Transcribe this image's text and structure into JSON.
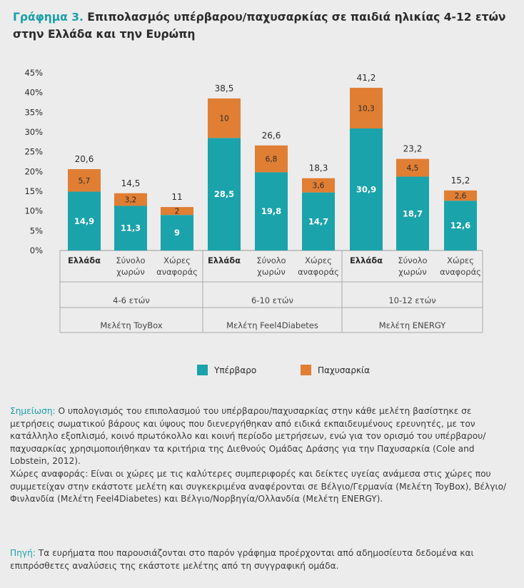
{
  "title": {
    "lead": "Γράφημα 3.",
    "rest": " Επιπολασμός υπέρβαρου/παχυσαρκίας σε παιδιά ηλικίας 4-12 ετών στην Ελλάδα και την Ευρώπη"
  },
  "colors": {
    "overweight": "#1aa3ab",
    "obesity": "#e07e34"
  },
  "chart_data": {
    "type": "bar",
    "stacked": true,
    "y_ticks": [
      "0%",
      "5%",
      "10%",
      "15%",
      "20%",
      "25%",
      "30%",
      "35%",
      "40%",
      "45%"
    ],
    "ylim": [
      0,
      45
    ],
    "groups": [
      {
        "study": "Μελέτη ToyBox",
        "age": "4-6 ετών",
        "bars": [
          {
            "label": [
              "Ελλάδα"
            ],
            "bold": true,
            "overweight": 14.9,
            "obesity": 5.7,
            "total": "20,6",
            "ow_label": "14,9",
            "ob_label": "5,7"
          },
          {
            "label": [
              "Σύνολο",
              "χωρών"
            ],
            "bold": false,
            "overweight": 11.3,
            "obesity": 3.2,
            "total": "14,5",
            "ow_label": "11,3",
            "ob_label": "3,2"
          },
          {
            "label": [
              "Χώρες",
              "αναφοράς"
            ],
            "bold": false,
            "overweight": 9,
            "obesity": 2,
            "total": "11",
            "ow_label": "9",
            "ob_label": "2"
          }
        ]
      },
      {
        "study": "Μελέτη Feel4Diabetes",
        "age": "6-10 ετών",
        "bars": [
          {
            "label": [
              "Ελλάδα"
            ],
            "bold": true,
            "overweight": 28.5,
            "obesity": 10,
            "total": "38,5",
            "ow_label": "28,5",
            "ob_label": "10"
          },
          {
            "label": [
              "Σύνολο",
              "χωρών"
            ],
            "bold": false,
            "overweight": 19.8,
            "obesity": 6.8,
            "total": "26,6",
            "ow_label": "19,8",
            "ob_label": "6,8"
          },
          {
            "label": [
              "Χώρες",
              "αναφοράς"
            ],
            "bold": false,
            "overweight": 14.7,
            "obesity": 3.6,
            "total": "18,3",
            "ow_label": "14,7",
            "ob_label": "3,6"
          }
        ]
      },
      {
        "study": "Μελέτη ENERGY",
        "age": "10-12 ετών",
        "bars": [
          {
            "label": [
              "Ελλάδα"
            ],
            "bold": true,
            "overweight": 30.9,
            "obesity": 10.3,
            "total": "41,2",
            "ow_label": "30,9",
            "ob_label": "10,3"
          },
          {
            "label": [
              "Σύνολο",
              "χωρών"
            ],
            "bold": false,
            "overweight": 18.7,
            "obesity": 4.5,
            "total": "23,2",
            "ow_label": "18,7",
            "ob_label": "4,5"
          },
          {
            "label": [
              "Χώρες",
              "αναφοράς"
            ],
            "bold": false,
            "overweight": 12.6,
            "obesity": 2.6,
            "total": "15,2",
            "ow_label": "12,6",
            "ob_label": "2,6"
          }
        ]
      }
    ],
    "legend": [
      "Υπέρβαρο",
      "Παχυσαρκία"
    ],
    "legend_position": "bottom"
  },
  "notes": {
    "note_label": "Σημείωση:",
    "note_text": " Ο υπολογισμός του επιπολασμού του υπέρβαρου/παχυσαρκίας στην κάθε μελέτη βασίστηκε σε μετρήσεις σωματικού βάρους και ύψους που διενεργήθηκαν από ειδικά εκπαιδευμένους ερευνητές, με τον κατάλληλο εξοπλισμό, κοινό πρωτόκολλο και κοινή περίοδο μετρήσεων, ενώ για τον ορισμό του υπέρβαρου/παχυσαρκίας χρησιμοποιήθηκαν τα κριτήρια της Διεθνούς Ομάδας Δράσης για την Παχυσαρκία (Cole and Lobstein, 2012).",
    "ref_text": "Χώρες αναφοράς: Είναι οι χώρες με τις καλύτερες συμπεριφορές και δείκτες υγείας ανάμεσα στις χώρες που συμμετείχαν στην εκάστοτε μελέτη και συγκεκριμένα αναφέρονται σε Βέλγιο/Γερμανία (Μελέτη ToyBox), Βέλγιο/Φινλανδία (Μελέτη Feel4Diabetes) και Βέλγιο/Νορβηγία/Ολλανδία (Μελέτη ENERGY).",
    "source_label": "Πηγή:",
    "source_text": " Τα ευρήματα που παρουσιάζονται στο παρόν γράφημα προέρχονται από αδημοσίευτα δεδομένα και επιπρόσθετες αναλύσεις της εκάστοτε μελέτης από τη συγγραφική ομάδα."
  }
}
